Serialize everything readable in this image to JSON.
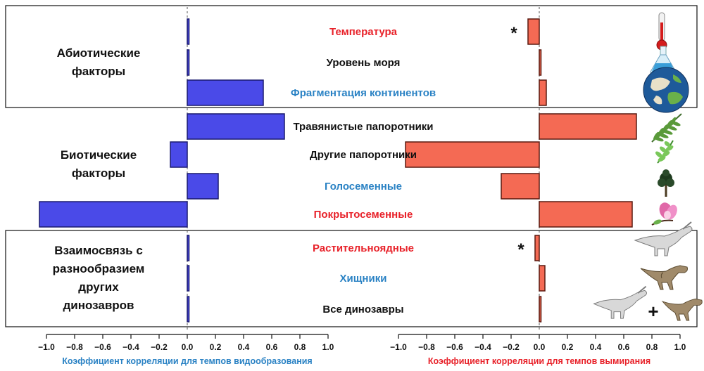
{
  "colors": {
    "red_label": "#e8222a",
    "blue_label": "#2a82c4",
    "black_label": "#111111",
    "speciation_bar": "#4a4ae8",
    "extinction_bar": "#f46a54"
  },
  "groups": [
    {
      "label_lines": [
        "Абиотические",
        "факторы"
      ]
    },
    {
      "label_lines": [
        "Биотические",
        "факторы"
      ]
    },
    {
      "label_lines": [
        "Взаимосвязь с",
        "разнообразием",
        "других",
        "динозавров"
      ]
    }
  ],
  "significance_marker": "*",
  "combined_marker": "+",
  "icons": [
    "thermometer-icon",
    "flask-icon",
    "globe-icon",
    "fern-icon",
    "fern-frond-icon",
    "tree-icon",
    "flower-icon",
    "herbivore-dinosaur-icon",
    "carnivore-dinosaur-icon",
    "dinosaurs-combined-icon"
  ],
  "chart_data": {
    "type": "bar",
    "orientation": "horizontal",
    "categories": [
      "Температура",
      "Уровень моря",
      "Фрагментация континентов",
      "Травянистые папоротники",
      "Другие папоротники",
      "Голосеменные",
      "Покрытосеменные",
      "Растительноядные",
      "Хищники",
      "Все динозавры"
    ],
    "category_colors": [
      "red",
      "black",
      "blue",
      "black",
      "black",
      "blue",
      "red",
      "red",
      "blue",
      "black"
    ],
    "category_groups": [
      0,
      0,
      0,
      1,
      1,
      1,
      1,
      2,
      2,
      2
    ],
    "series": [
      {
        "values": [
          0.01,
          0.0,
          0.54,
          0.69,
          -0.12,
          0.22,
          -1.05,
          0.0,
          0.01,
          0.0
        ],
        "xlabel": "Коэффициент корреляции для темпов видообразования",
        "xlim": [
          -1.0,
          1.0
        ],
        "ticks": [
          "−1.0",
          "−0.8",
          "−0.6",
          "−0.4",
          "−0.2",
          "0.0",
          "0.2",
          "0.4",
          "0.6",
          "0.8",
          "1.0"
        ],
        "significant": [
          false,
          false,
          false,
          false,
          false,
          false,
          false,
          false,
          false,
          false
        ]
      },
      {
        "values": [
          -0.08,
          0.0,
          0.05,
          0.69,
          -0.95,
          -0.27,
          0.66,
          -0.03,
          0.04,
          0.0
        ],
        "xlabel": "Коэффициент корреляции для темпов вымирания",
        "xlim": [
          -1.0,
          1.0
        ],
        "ticks": [
          "−1.0",
          "−0.8",
          "−0.6",
          "−0.4",
          "−0.2",
          "0.0",
          "0.2",
          "0.4",
          "0.6",
          "0.8",
          "1.0"
        ],
        "significant": [
          true,
          false,
          false,
          false,
          false,
          false,
          false,
          true,
          false,
          false
        ]
      }
    ],
    "grid": false,
    "legend": "none"
  }
}
